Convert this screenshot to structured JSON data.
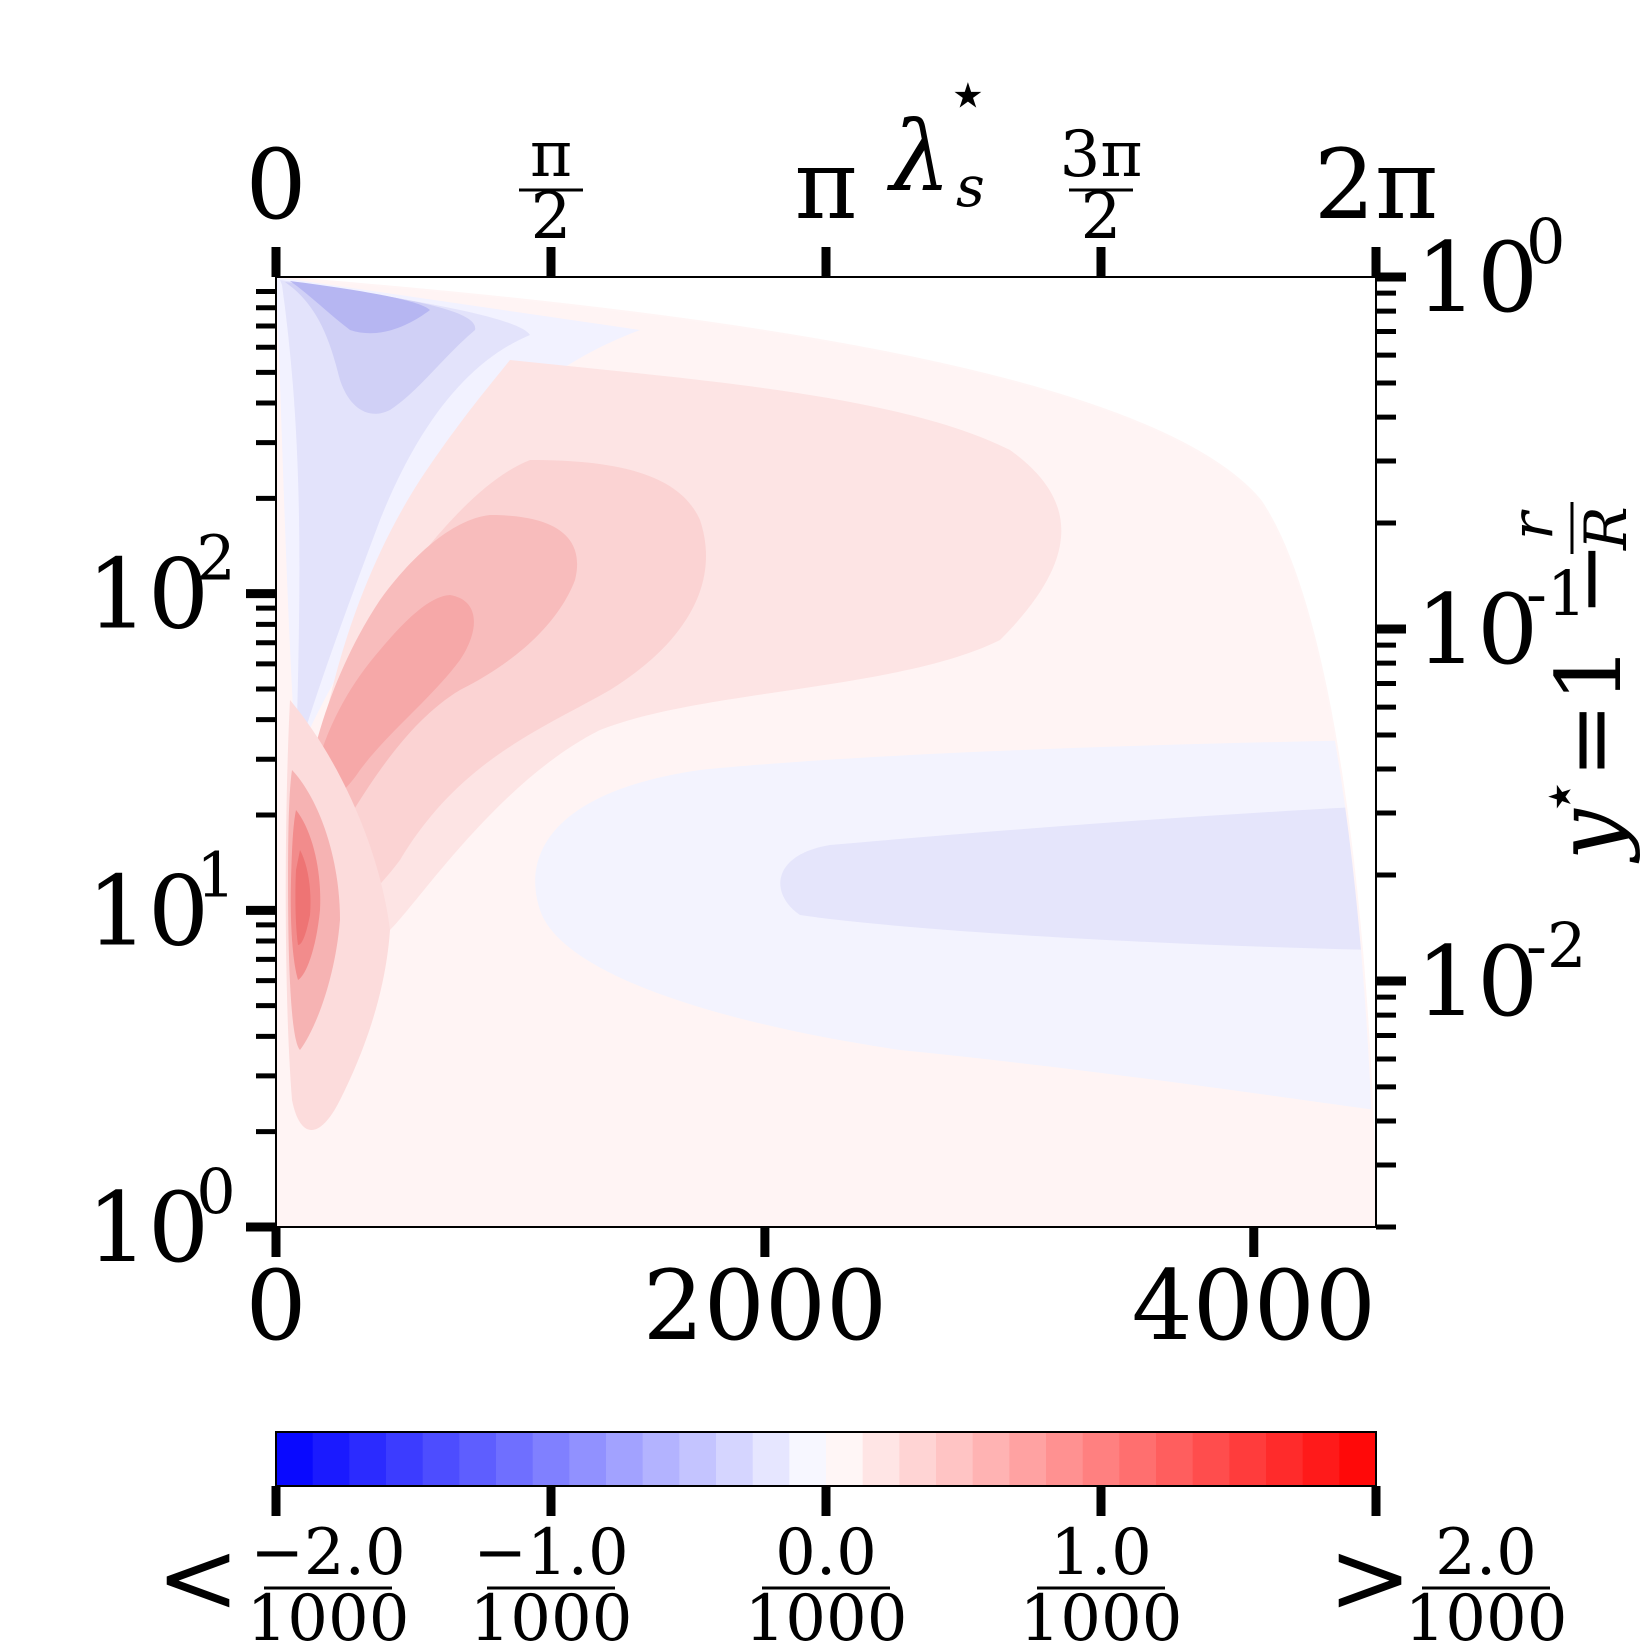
{
  "chart_data": {
    "type": "heatmap",
    "title": "",
    "plot_type": "filled contour",
    "bottom_axis": {
      "label": "",
      "range": [
        0,
        4500
      ],
      "ticks": [
        0,
        2000,
        4000
      ],
      "tick_labels": [
        "0",
        "2000",
        "4000"
      ]
    },
    "top_axis": {
      "label": "λ",
      "label_superscript": "⋆",
      "label_subscript": "s",
      "range_radians": [
        0,
        6.2832
      ],
      "ticks": [
        0,
        1.5708,
        3.1416,
        4.7124,
        6.2832
      ],
      "tick_labels": [
        {
          "num": "0",
          "den": ""
        },
        {
          "num": "π",
          "den": "2"
        },
        {
          "num": "π",
          "den": ""
        },
        {
          "num": "3π",
          "den": "2"
        },
        {
          "num": "2π",
          "den": ""
        }
      ]
    },
    "left_axis": {
      "label": "",
      "scale": "log",
      "range": [
        1,
        1000
      ],
      "ticks": [
        1,
        10,
        100
      ],
      "tick_labels": [
        {
          "base": "10",
          "exp": "0"
        },
        {
          "base": "10",
          "exp": "1"
        },
        {
          "base": "10",
          "exp": "2"
        }
      ]
    },
    "right_axis": {
      "label_lhs": "y",
      "label_star": "⋆",
      "label_eq": "=1 −",
      "label_frac_num": "r",
      "label_frac_den": "R",
      "scale": "log",
      "range": [
        0.002,
        1
      ],
      "ticks": [
        0.01,
        0.1,
        1
      ],
      "tick_labels": [
        {
          "base": "10",
          "exp": "-2"
        },
        {
          "base": "10",
          "exp": "-1"
        },
        {
          "base": "10",
          "exp": "0"
        }
      ]
    },
    "features": [
      {
        "sign": "negative",
        "level": -0.6,
        "x": 200,
        "y": 700
      },
      {
        "sign": "positive",
        "level": 1.1,
        "x": 130,
        "y": 10
      },
      {
        "sign": "positive",
        "level": 0.6,
        "x": 500,
        "y": 60
      },
      {
        "sign": "positive",
        "level": 0.2,
        "x": 2000,
        "y": 100
      },
      {
        "sign": "negative",
        "level": -0.15,
        "x": 3800,
        "y": 9
      }
    ],
    "colorbar": {
      "colormap": "bwr",
      "range": [
        -0.002,
        0.002
      ],
      "levels": 30,
      "colors": {
        "low": "#0000ff",
        "mid": "#ffffff",
        "high": "#ff0000"
      },
      "ticks": [
        -2.0,
        -1.0,
        0.0,
        1.0,
        2.0
      ],
      "tick_labels": [
        {
          "prefix": "<",
          "num": "−2.0",
          "den": "1000"
        },
        {
          "prefix": "",
          "num": "−1.0",
          "den": "1000"
        },
        {
          "prefix": "",
          "num": "0.0",
          "den": "1000"
        },
        {
          "prefix": "",
          "num": "1.0",
          "den": "1000"
        },
        {
          "prefix": ">",
          "num": "2.0",
          "den": "1000"
        }
      ]
    }
  }
}
